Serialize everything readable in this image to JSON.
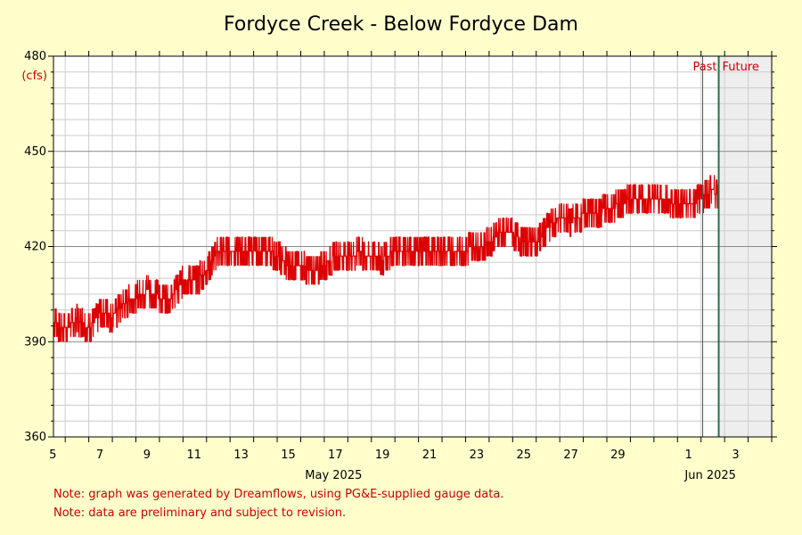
{
  "chart_data": {
    "type": "line",
    "title": "Fordyce Creek - Below Fordyce Dam",
    "ylabel": "(cfs)",
    "ylim": [
      360,
      480
    ],
    "yticks": [
      360,
      390,
      420,
      450,
      480
    ],
    "xlim": [
      "2025-05-04T12:00",
      "2025-06-04T00:00"
    ],
    "xticks": [
      {
        "date": "2025-05-05",
        "label": "5"
      },
      {
        "date": "2025-05-07",
        "label": "7"
      },
      {
        "date": "2025-05-09",
        "label": "9"
      },
      {
        "date": "2025-05-11",
        "label": "11"
      },
      {
        "date": "2025-05-13",
        "label": "13"
      },
      {
        "date": "2025-05-15",
        "label": "15"
      },
      {
        "date": "2025-05-17",
        "label": "17"
      },
      {
        "date": "2025-05-19",
        "label": "19"
      },
      {
        "date": "2025-05-21",
        "label": "21"
      },
      {
        "date": "2025-05-23",
        "label": "23"
      },
      {
        "date": "2025-05-25",
        "label": "25"
      },
      {
        "date": "2025-05-27",
        "label": "27"
      },
      {
        "date": "2025-05-29",
        "label": "29"
      },
      {
        "date": "2025-06-01",
        "label": "1"
      },
      {
        "date": "2025-06-03",
        "label": "3"
      }
    ],
    "month_labels": [
      {
        "date": "2025-05-17",
        "label": "May 2025"
      },
      {
        "date": "2025-06-02",
        "label": "Jun 2025"
      }
    ],
    "now": "2025-06-01T18:00",
    "past_label": "Past",
    "future_label": "Future",
    "grid": true,
    "series": [
      {
        "color": "#dd0000",
        "x": [
          "2025-05-04T12:00",
          "2025-05-05T00:00",
          "2025-05-05T12:00",
          "2025-05-06T00:00",
          "2025-05-06T12:00",
          "2025-05-07T00:00",
          "2025-05-07T12:00",
          "2025-05-08T00:00",
          "2025-05-08T12:00",
          "2025-05-09T00:00",
          "2025-05-09T12:00",
          "2025-05-10T00:00",
          "2025-05-10T12:00",
          "2025-05-11T00:00",
          "2025-05-11T12:00",
          "2025-05-12T00:00",
          "2025-05-12T12:00",
          "2025-05-13T00:00",
          "2025-05-13T12:00",
          "2025-05-14T00:00",
          "2025-05-14T12:00",
          "2025-05-15T00:00",
          "2025-05-15T12:00",
          "2025-05-16T00:00",
          "2025-05-16T12:00",
          "2025-05-17T00:00",
          "2025-05-17T12:00",
          "2025-05-18T00:00",
          "2025-05-18T12:00",
          "2025-05-19T00:00",
          "2025-05-19T12:00",
          "2025-05-20T00:00",
          "2025-05-20T12:00",
          "2025-05-21T00:00",
          "2025-05-21T12:00",
          "2025-05-22T00:00",
          "2025-05-22T12:00",
          "2025-05-23T00:00",
          "2025-05-23T12:00",
          "2025-05-24T00:00",
          "2025-05-24T12:00",
          "2025-05-25T00:00",
          "2025-05-25T12:00",
          "2025-05-26T00:00",
          "2025-05-26T12:00",
          "2025-05-27T00:00",
          "2025-05-27T12:00",
          "2025-05-28T00:00",
          "2025-05-28T12:00",
          "2025-05-29T00:00",
          "2025-05-29T12:00",
          "2025-05-30T00:00",
          "2025-05-30T12:00",
          "2025-05-31T00:00",
          "2025-05-31T12:00",
          "2025-06-01T00:00",
          "2025-06-01T12:00",
          "2025-06-01T18:00"
        ],
        "y": [
          396,
          394,
          397,
          394,
          399,
          398,
          402,
          404,
          406,
          404,
          404,
          409,
          409,
          412,
          419,
          419,
          419,
          418,
          419,
          417,
          414,
          414,
          412,
          414,
          417,
          417,
          418,
          417,
          416,
          419,
          419,
          419,
          419,
          419,
          419,
          419,
          420,
          421,
          425,
          424,
          421,
          421,
          426,
          429,
          428,
          430,
          430,
          432,
          433,
          435,
          435,
          435,
          435,
          433,
          433,
          435,
          438,
          435
        ]
      }
    ]
  },
  "notes": [
    "Note: graph was generated by Dreamflows, using PG&E-supplied gauge data.",
    "Note: data are preliminary and subject to revision."
  ]
}
